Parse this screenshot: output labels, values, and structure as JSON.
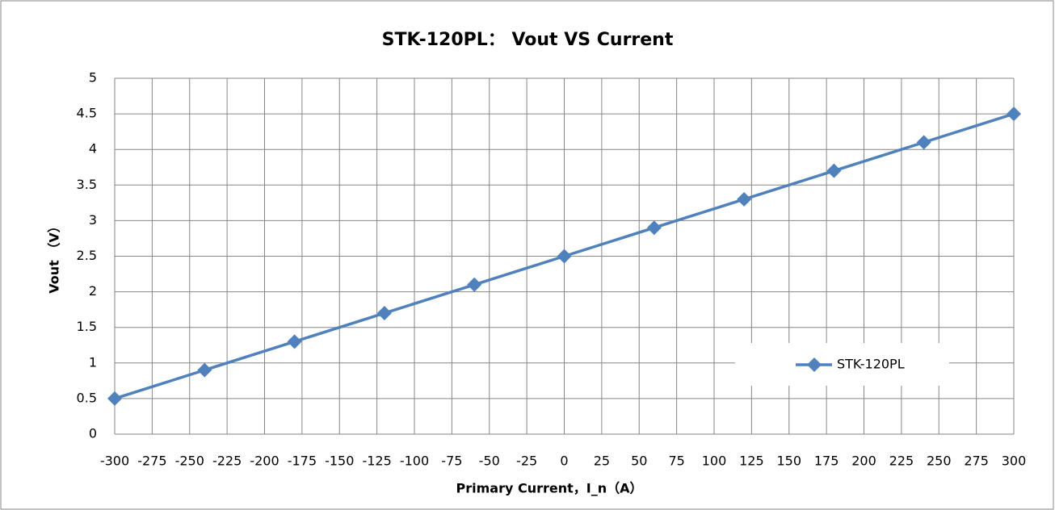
{
  "chart_data": {
    "type": "line",
    "title": "STK-120PL： Vout VS Current",
    "xlabel": "Primary Current，I_n（A）",
    "ylabel": "Vout （V）",
    "x": [
      -300,
      -240,
      -180,
      -120,
      -60,
      0,
      60,
      120,
      180,
      240,
      300
    ],
    "series": [
      {
        "name": "STK-120PL",
        "color": "#4f81bd",
        "values": [
          0.5,
          0.9,
          1.3,
          1.7,
          2.1,
          2.5,
          2.9,
          3.3,
          3.7,
          4.1,
          4.5
        ]
      }
    ],
    "xlim": [
      -300,
      300
    ],
    "xticks": [
      -300,
      -275,
      -250,
      -225,
      -200,
      -175,
      -150,
      -125,
      -100,
      -75,
      -50,
      -25,
      0,
      25,
      50,
      75,
      100,
      125,
      150,
      175,
      200,
      225,
      250,
      275,
      300
    ],
    "ylim": [
      0,
      5
    ],
    "yticks": [
      0,
      0.5,
      1,
      1.5,
      2,
      2.5,
      3,
      3.5,
      4,
      4.5,
      5
    ],
    "grid": true,
    "legend": "lower right"
  }
}
